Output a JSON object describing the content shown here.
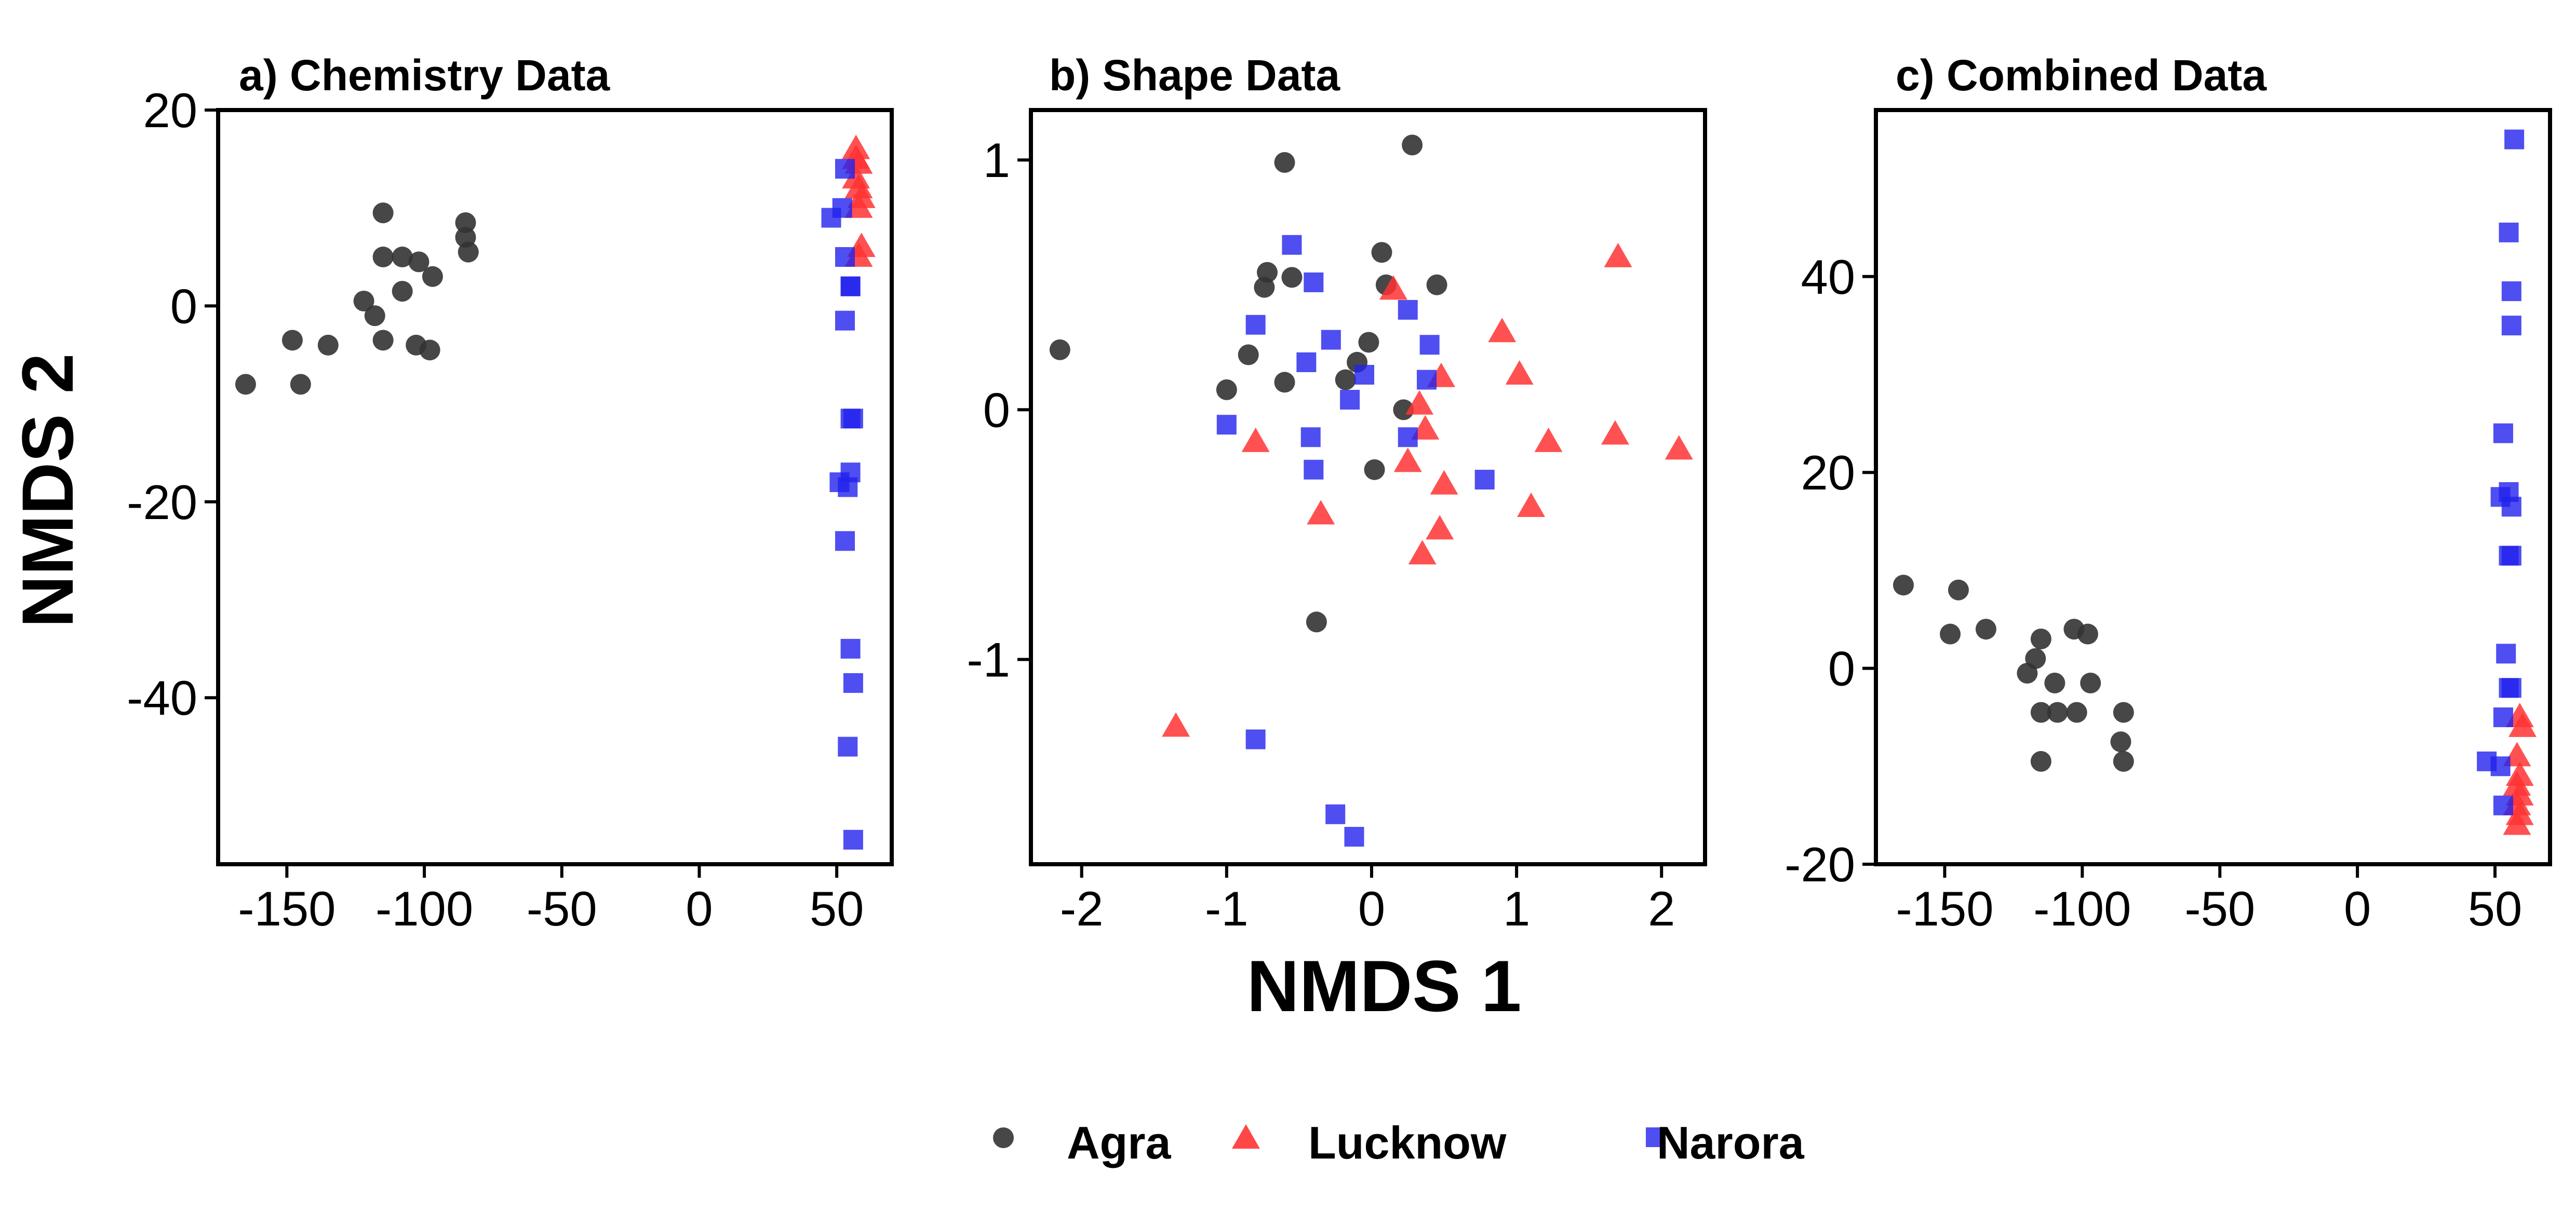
{
  "figure": {
    "xlabel": "NMDS 1",
    "ylabel": "NMDS 2",
    "legend": {
      "position": "bottom",
      "items": [
        {
          "label": "Agra",
          "shape": "circle",
          "color": "#333333"
        },
        {
          "label": "Lucknow",
          "shape": "triangle",
          "color": "#ff3333"
        },
        {
          "label": "Narora",
          "shape": "square",
          "color": "#2222ee"
        }
      ]
    }
  },
  "chart_data": [
    {
      "type": "scatter",
      "title": "a) Chemistry Data",
      "xlim": [
        -175,
        70
      ],
      "ylim": [
        -57,
        20
      ],
      "xticks": [
        -150,
        -100,
        -50,
        0,
        50
      ],
      "yticks": [
        20,
        0,
        -20,
        -40
      ],
      "series": [
        {
          "name": "Agra",
          "points": [
            [
              -165,
              -8
            ],
            [
              -148,
              -3.5
            ],
            [
              -145,
              -8
            ],
            [
              -135,
              -4
            ],
            [
              -122,
              0.5
            ],
            [
              -118,
              -1
            ],
            [
              -115,
              9.5
            ],
            [
              -115,
              -3.5
            ],
            [
              -115,
              5
            ],
            [
              -108,
              5
            ],
            [
              -108,
              1.5
            ],
            [
              -103,
              -4
            ],
            [
              -102,
              4.5
            ],
            [
              -98,
              -4.5
            ],
            [
              -97,
              3
            ],
            [
              -85,
              8.5
            ],
            [
              -85,
              7
            ],
            [
              -84,
              5.5
            ]
          ]
        },
        {
          "name": "Lucknow",
          "points": [
            [
              57,
              16
            ],
            [
              58,
              14.5
            ],
            [
              57,
              13
            ],
            [
              58,
              12
            ],
            [
              59,
              11
            ],
            [
              58,
              10
            ],
            [
              57,
              15
            ],
            [
              59,
              6
            ],
            [
              58,
              5
            ]
          ]
        },
        {
          "name": "Narora",
          "points": [
            [
              53,
              14
            ],
            [
              48,
              9
            ],
            [
              52,
              10
            ],
            [
              53,
              5
            ],
            [
              55,
              2
            ],
            [
              55,
              2
            ],
            [
              53,
              -1.5
            ],
            [
              56,
              -11.5
            ],
            [
              55,
              -11.5
            ],
            [
              51,
              -18
            ],
            [
              54,
              -18.5
            ],
            [
              55,
              -17
            ],
            [
              53,
              -24
            ],
            [
              55,
              -35
            ],
            [
              56,
              -38.5
            ],
            [
              54,
              -45
            ],
            [
              56,
              -54.5
            ]
          ]
        }
      ]
    },
    {
      "type": "scatter",
      "title": "b) Shape Data",
      "xlim": [
        -2.35,
        2.3
      ],
      "ylim": [
        -1.82,
        1.2
      ],
      "xticks": [
        -2,
        -1,
        0,
        1,
        2
      ],
      "yticks": [
        1,
        0,
        -1
      ],
      "series": [
        {
          "name": "Agra",
          "points": [
            [
              -2.15,
              0.24
            ],
            [
              -0.6,
              0.99
            ],
            [
              0.28,
              1.06
            ],
            [
              -0.72,
              0.55
            ],
            [
              -0.55,
              0.53
            ],
            [
              -0.74,
              0.49
            ],
            [
              0.07,
              0.63
            ],
            [
              0.1,
              0.5
            ],
            [
              0.45,
              0.5
            ],
            [
              -0.85,
              0.22
            ],
            [
              -0.1,
              0.19
            ],
            [
              -0.02,
              0.27
            ],
            [
              -0.6,
              0.11
            ],
            [
              -0.18,
              0.12
            ],
            [
              -1.0,
              0.08
            ],
            [
              0.22,
              0.0
            ],
            [
              0.02,
              -0.24
            ],
            [
              -0.38,
              -0.85
            ]
          ]
        },
        {
          "name": "Lucknow",
          "points": [
            [
              1.7,
              0.61
            ],
            [
              0.15,
              0.48
            ],
            [
              0.9,
              0.31
            ],
            [
              1.02,
              0.14
            ],
            [
              0.48,
              0.13
            ],
            [
              0.33,
              0.02
            ],
            [
              0.37,
              -0.08
            ],
            [
              -0.8,
              -0.13
            ],
            [
              1.22,
              -0.13
            ],
            [
              1.68,
              -0.1
            ],
            [
              2.12,
              -0.16
            ],
            [
              0.25,
              -0.21
            ],
            [
              0.5,
              -0.3
            ],
            [
              1.1,
              -0.39
            ],
            [
              -0.35,
              -0.42
            ],
            [
              0.47,
              -0.48
            ],
            [
              0.35,
              -0.58
            ],
            [
              -1.35,
              -1.27
            ]
          ]
        },
        {
          "name": "Narora",
          "points": [
            [
              -0.55,
              0.66
            ],
            [
              -0.4,
              0.51
            ],
            [
              0.25,
              0.4
            ],
            [
              -0.8,
              0.34
            ],
            [
              -0.28,
              0.28
            ],
            [
              0.4,
              0.26
            ],
            [
              -0.45,
              0.19
            ],
            [
              -0.05,
              0.14
            ],
            [
              0.38,
              0.12
            ],
            [
              -0.15,
              0.04
            ],
            [
              -1.0,
              -0.06
            ],
            [
              -0.42,
              -0.11
            ],
            [
              0.25,
              -0.11
            ],
            [
              -0.4,
              -0.24
            ],
            [
              0.78,
              -0.28
            ],
            [
              -0.8,
              -1.32
            ],
            [
              -0.25,
              -1.62
            ],
            [
              -0.12,
              -1.71
            ]
          ]
        }
      ]
    },
    {
      "type": "scatter",
      "title": "c) Combined Data",
      "xlim": [
        -175,
        70
      ],
      "ylim": [
        -20,
        57
      ],
      "xticks": [
        -150,
        -100,
        -50,
        0,
        50
      ],
      "yticks": [
        40,
        20,
        0,
        -20
      ],
      "series": [
        {
          "name": "Agra",
          "points": [
            [
              -165,
              8.5
            ],
            [
              -148,
              3.5
            ],
            [
              -145,
              8
            ],
            [
              -135,
              4
            ],
            [
              -120,
              -0.5
            ],
            [
              -117,
              1
            ],
            [
              -115,
              3
            ],
            [
              -115,
              -4.5
            ],
            [
              -115,
              -9.5
            ],
            [
              -110,
              -1.5
            ],
            [
              -109,
              -4.5
            ],
            [
              -103,
              4
            ],
            [
              -102,
              -4.5
            ],
            [
              -98,
              3.5
            ],
            [
              -97,
              -1.5
            ],
            [
              -85,
              -4.5
            ],
            [
              -86,
              -7.5
            ],
            [
              -85,
              -9.5
            ]
          ]
        },
        {
          "name": "Lucknow",
          "points": [
            [
              59,
              -5
            ],
            [
              60,
              -6
            ],
            [
              58,
              -9
            ],
            [
              59,
              -11
            ],
            [
              58,
              -12
            ],
            [
              59,
              -13
            ],
            [
              58,
              -14
            ],
            [
              59,
              -15
            ],
            [
              58,
              -16
            ]
          ]
        },
        {
          "name": "Narora",
          "points": [
            [
              57,
              54
            ],
            [
              55,
              44.5
            ],
            [
              56,
              38.5
            ],
            [
              56,
              35
            ],
            [
              53,
              24
            ],
            [
              52,
              17.5
            ],
            [
              55,
              18
            ],
            [
              56,
              16.5
            ],
            [
              55,
              11.5
            ],
            [
              56,
              11.5
            ],
            [
              54,
              1.5
            ],
            [
              55,
              -2
            ],
            [
              56,
              -2
            ],
            [
              53,
              -5
            ],
            [
              47,
              -9.5
            ],
            [
              52,
              -10
            ],
            [
              53,
              -14
            ]
          ]
        }
      ]
    }
  ]
}
